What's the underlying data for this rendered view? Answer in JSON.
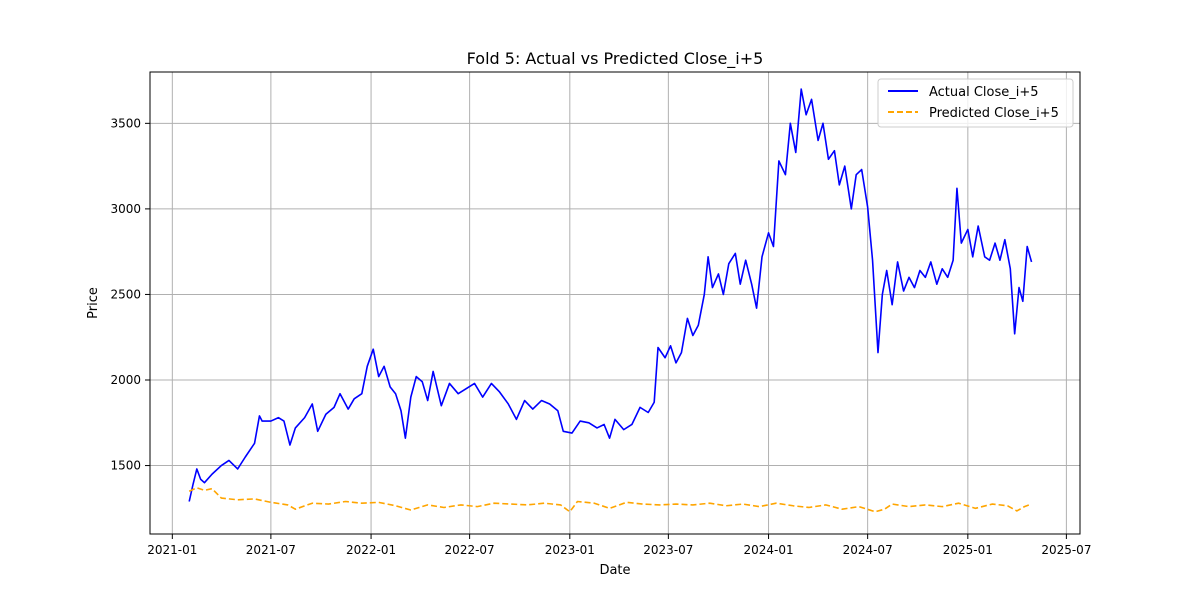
{
  "chart_data": {
    "type": "line",
    "title": "Fold 5: Actual vs Predicted Close_i+5",
    "xlabel": "Date",
    "ylabel": "Price",
    "x_ticks": [
      "2021-01",
      "2021-07",
      "2022-01",
      "2022-07",
      "2023-01",
      "2023-07",
      "2024-01",
      "2024-07",
      "2025-01",
      "2025-07"
    ],
    "y_ticks": [
      1500,
      2000,
      2500,
      3000,
      3500
    ],
    "xlim": [
      "2020-11-21",
      "2025-07-26"
    ],
    "ylim": [
      1100,
      3800
    ],
    "grid": true,
    "legend_position": "top-right",
    "series": [
      {
        "name": "Actual Close_i+5",
        "color": "#0000ff",
        "style": "solid",
        "points": [
          [
            "2021-02-01",
            1290
          ],
          [
            "2021-02-08",
            1390
          ],
          [
            "2021-02-15",
            1480
          ],
          [
            "2021-02-22",
            1420
          ],
          [
            "2021-03-01",
            1400
          ],
          [
            "2021-03-15",
            1450
          ],
          [
            "2021-04-01",
            1500
          ],
          [
            "2021-04-15",
            1530
          ],
          [
            "2021-05-01",
            1480
          ],
          [
            "2021-05-15",
            1550
          ],
          [
            "2021-06-01",
            1630
          ],
          [
            "2021-06-10",
            1790
          ],
          [
            "2021-06-15",
            1760
          ],
          [
            "2021-07-01",
            1760
          ],
          [
            "2021-07-15",
            1780
          ],
          [
            "2021-07-25",
            1760
          ],
          [
            "2021-08-05",
            1620
          ],
          [
            "2021-08-15",
            1720
          ],
          [
            "2021-09-01",
            1780
          ],
          [
            "2021-09-15",
            1860
          ],
          [
            "2021-09-25",
            1700
          ],
          [
            "2021-10-10",
            1800
          ],
          [
            "2021-10-25",
            1840
          ],
          [
            "2021-11-05",
            1920
          ],
          [
            "2021-11-20",
            1830
          ],
          [
            "2021-12-01",
            1890
          ],
          [
            "2021-12-15",
            1920
          ],
          [
            "2021-12-25",
            2080
          ],
          [
            "2022-01-05",
            2180
          ],
          [
            "2022-01-15",
            2020
          ],
          [
            "2022-01-25",
            2080
          ],
          [
            "2022-02-05",
            1960
          ],
          [
            "2022-02-15",
            1920
          ],
          [
            "2022-02-25",
            1820
          ],
          [
            "2022-03-05",
            1660
          ],
          [
            "2022-03-15",
            1900
          ],
          [
            "2022-03-25",
            2020
          ],
          [
            "2022-04-05",
            1990
          ],
          [
            "2022-04-15",
            1880
          ],
          [
            "2022-04-25",
            2050
          ],
          [
            "2022-05-10",
            1850
          ],
          [
            "2022-05-25",
            1980
          ],
          [
            "2022-06-10",
            1920
          ],
          [
            "2022-06-25",
            1950
          ],
          [
            "2022-07-10",
            1980
          ],
          [
            "2022-07-25",
            1900
          ],
          [
            "2022-08-10",
            1980
          ],
          [
            "2022-08-25",
            1930
          ],
          [
            "2022-09-10",
            1860
          ],
          [
            "2022-09-25",
            1770
          ],
          [
            "2022-10-10",
            1880
          ],
          [
            "2022-10-25",
            1830
          ],
          [
            "2022-11-10",
            1880
          ],
          [
            "2022-11-25",
            1860
          ],
          [
            "2022-12-10",
            1820
          ],
          [
            "2022-12-20",
            1700
          ],
          [
            "2023-01-05",
            1690
          ],
          [
            "2023-01-20",
            1760
          ],
          [
            "2023-02-05",
            1750
          ],
          [
            "2023-02-20",
            1720
          ],
          [
            "2023-03-05",
            1740
          ],
          [
            "2023-03-15",
            1660
          ],
          [
            "2023-03-25",
            1770
          ],
          [
            "2023-04-10",
            1710
          ],
          [
            "2023-04-25",
            1740
          ],
          [
            "2023-05-10",
            1840
          ],
          [
            "2023-05-25",
            1810
          ],
          [
            "2023-06-05",
            1870
          ],
          [
            "2023-06-12",
            2190
          ],
          [
            "2023-06-25",
            2130
          ],
          [
            "2023-07-05",
            2200
          ],
          [
            "2023-07-15",
            2100
          ],
          [
            "2023-07-25",
            2160
          ],
          [
            "2023-08-05",
            2360
          ],
          [
            "2023-08-15",
            2260
          ],
          [
            "2023-08-25",
            2320
          ],
          [
            "2023-09-05",
            2500
          ],
          [
            "2023-09-12",
            2720
          ],
          [
            "2023-09-20",
            2540
          ],
          [
            "2023-10-01",
            2620
          ],
          [
            "2023-10-10",
            2500
          ],
          [
            "2023-10-20",
            2680
          ],
          [
            "2023-11-01",
            2740
          ],
          [
            "2023-11-10",
            2560
          ],
          [
            "2023-11-20",
            2700
          ],
          [
            "2023-12-01",
            2560
          ],
          [
            "2023-12-10",
            2420
          ],
          [
            "2023-12-20",
            2720
          ],
          [
            "2024-01-01",
            2860
          ],
          [
            "2024-01-10",
            2780
          ],
          [
            "2024-01-20",
            3280
          ],
          [
            "2024-02-01",
            3200
          ],
          [
            "2024-02-10",
            3500
          ],
          [
            "2024-02-20",
            3330
          ],
          [
            "2024-03-01",
            3700
          ],
          [
            "2024-03-10",
            3550
          ],
          [
            "2024-03-20",
            3640
          ],
          [
            "2024-04-01",
            3400
          ],
          [
            "2024-04-10",
            3500
          ],
          [
            "2024-04-20",
            3290
          ],
          [
            "2024-05-01",
            3340
          ],
          [
            "2024-05-10",
            3140
          ],
          [
            "2024-05-20",
            3250
          ],
          [
            "2024-06-01",
            3000
          ],
          [
            "2024-06-10",
            3200
          ],
          [
            "2024-06-20",
            3230
          ],
          [
            "2024-07-01",
            3010
          ],
          [
            "2024-07-10",
            2700
          ],
          [
            "2024-07-20",
            2160
          ],
          [
            "2024-07-28",
            2500
          ],
          [
            "2024-08-05",
            2640
          ],
          [
            "2024-08-15",
            2440
          ],
          [
            "2024-08-25",
            2690
          ],
          [
            "2024-09-05",
            2520
          ],
          [
            "2024-09-15",
            2600
          ],
          [
            "2024-09-25",
            2540
          ],
          [
            "2024-10-05",
            2640
          ],
          [
            "2024-10-15",
            2600
          ],
          [
            "2024-10-25",
            2690
          ],
          [
            "2024-11-05",
            2560
          ],
          [
            "2024-11-15",
            2650
          ],
          [
            "2024-11-25",
            2600
          ],
          [
            "2024-12-05",
            2700
          ],
          [
            "2024-12-12",
            3120
          ],
          [
            "2024-12-20",
            2800
          ],
          [
            "2025-01-01",
            2880
          ],
          [
            "2025-01-10",
            2720
          ],
          [
            "2025-01-20",
            2900
          ],
          [
            "2025-02-01",
            2720
          ],
          [
            "2025-02-10",
            2700
          ],
          [
            "2025-02-20",
            2800
          ],
          [
            "2025-03-01",
            2700
          ],
          [
            "2025-03-10",
            2820
          ],
          [
            "2025-03-20",
            2650
          ],
          [
            "2025-03-28",
            2270
          ],
          [
            "2025-04-05",
            2540
          ],
          [
            "2025-04-12",
            2460
          ],
          [
            "2025-04-20",
            2780
          ],
          [
            "2025-04-28",
            2690
          ]
        ]
      },
      {
        "name": "Predicted Close_i+5",
        "color": "#ffa500",
        "style": "dashed",
        "points": [
          [
            "2021-02-01",
            1350
          ],
          [
            "2021-02-15",
            1370
          ],
          [
            "2021-03-01",
            1355
          ],
          [
            "2021-03-15",
            1365
          ],
          [
            "2021-04-01",
            1310
          ],
          [
            "2021-05-01",
            1300
          ],
          [
            "2021-06-01",
            1305
          ],
          [
            "2021-07-01",
            1285
          ],
          [
            "2021-08-01",
            1270
          ],
          [
            "2021-08-15",
            1245
          ],
          [
            "2021-09-15",
            1280
          ],
          [
            "2021-10-15",
            1275
          ],
          [
            "2021-11-15",
            1290
          ],
          [
            "2021-12-15",
            1280
          ],
          [
            "2022-01-15",
            1285
          ],
          [
            "2022-02-15",
            1265
          ],
          [
            "2022-03-15",
            1240
          ],
          [
            "2022-04-15",
            1270
          ],
          [
            "2022-05-15",
            1255
          ],
          [
            "2022-06-15",
            1270
          ],
          [
            "2022-07-15",
            1260
          ],
          [
            "2022-08-15",
            1280
          ],
          [
            "2022-09-15",
            1275
          ],
          [
            "2022-10-15",
            1270
          ],
          [
            "2022-11-15",
            1280
          ],
          [
            "2022-12-15",
            1270
          ],
          [
            "2023-01-01",
            1230
          ],
          [
            "2023-01-15",
            1290
          ],
          [
            "2023-02-15",
            1280
          ],
          [
            "2023-03-15",
            1250
          ],
          [
            "2023-04-15",
            1285
          ],
          [
            "2023-05-15",
            1275
          ],
          [
            "2023-06-15",
            1270
          ],
          [
            "2023-07-15",
            1275
          ],
          [
            "2023-08-15",
            1270
          ],
          [
            "2023-09-15",
            1280
          ],
          [
            "2023-10-15",
            1265
          ],
          [
            "2023-11-15",
            1275
          ],
          [
            "2023-12-15",
            1260
          ],
          [
            "2024-01-15",
            1280
          ],
          [
            "2024-02-15",
            1265
          ],
          [
            "2024-03-15",
            1255
          ],
          [
            "2024-04-15",
            1270
          ],
          [
            "2024-05-15",
            1245
          ],
          [
            "2024-06-15",
            1260
          ],
          [
            "2024-07-15",
            1230
          ],
          [
            "2024-08-01",
            1245
          ],
          [
            "2024-08-15",
            1275
          ],
          [
            "2024-09-15",
            1260
          ],
          [
            "2024-10-15",
            1270
          ],
          [
            "2024-11-15",
            1260
          ],
          [
            "2024-12-15",
            1280
          ],
          [
            "2025-01-15",
            1250
          ],
          [
            "2025-02-15",
            1275
          ],
          [
            "2025-03-15",
            1265
          ],
          [
            "2025-04-01",
            1235
          ],
          [
            "2025-04-15",
            1260
          ],
          [
            "2025-04-28",
            1275
          ]
        ]
      }
    ]
  }
}
